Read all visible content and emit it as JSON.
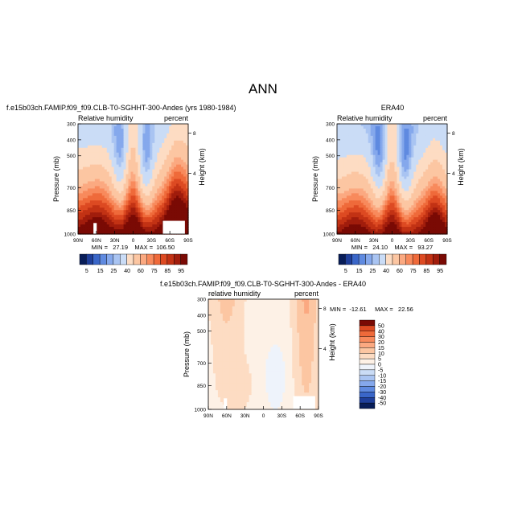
{
  "page_title": "ANN",
  "colors": {
    "blues": [
      "#081d58",
      "#1f3f9a",
      "#3a66c8",
      "#5f8ae0",
      "#85a8ec",
      "#a9c4f2",
      "#cadcf6"
    ],
    "neutral": [
      "#eef3fb",
      "#fdf1e6"
    ],
    "reds": [
      "#fddcc3",
      "#fcc6a2",
      "#fba981",
      "#f88a5c",
      "#ef6a3a",
      "#dd4a22",
      "#c23214",
      "#a11d0c",
      "#7a0a04"
    ]
  },
  "chart_data": [
    {
      "type": "heatmap",
      "title": "f.e15b03ch.FAMIP.f09_f09.CLB-T0-SGHHT-300-Andes (yrs 1980-1984)",
      "left_label": "Relative humidity",
      "right_label": "percent",
      "ylabel": "Pressure (mb)",
      "y2label": "Height (km)",
      "x_ticks": [
        "90N",
        "60N",
        "30N",
        "0",
        "30S",
        "60S",
        "90S"
      ],
      "y_ticks": [
        "300",
        "400",
        "500",
        "700",
        "850",
        "1000"
      ],
      "y2_ticks": [
        "8",
        "4"
      ],
      "min_max_text": "MIN =   27.19    MAX =  106.50",
      "colorbar_labels": [
        "5",
        "15",
        "25",
        "40",
        "60",
        "75",
        "85",
        "95"
      ],
      "approx_field": {
        "lat": [
          90,
          -90
        ],
        "pressure": [
          300,
          1000
        ],
        "range": [
          27.19,
          106.5
        ]
      }
    },
    {
      "type": "heatmap",
      "title": "ERA40",
      "left_label": "Relative humidity",
      "right_label": "percent",
      "ylabel": "Pressure (mb)",
      "y2label": "Height (km)",
      "x_ticks": [
        "90N",
        "60N",
        "30N",
        "0",
        "30S",
        "60S",
        "90S"
      ],
      "y_ticks": [
        "300",
        "400",
        "500",
        "700",
        "850",
        "1000"
      ],
      "y2_ticks": [
        "8",
        "4"
      ],
      "min_max_text": "MIN =   24.10    MAX =   93.27",
      "colorbar_labels": [
        "5",
        "15",
        "25",
        "40",
        "60",
        "75",
        "85",
        "95"
      ],
      "approx_field": {
        "lat": [
          90,
          -90
        ],
        "pressure": [
          300,
          1000
        ],
        "range": [
          24.1,
          93.27
        ]
      }
    },
    {
      "type": "heatmap",
      "title": "f.e15b03ch.FAMIP.f09_f09.CLB-T0-SGHHT-300-Andes - ERA40",
      "left_label": "relative humidity",
      "right_label": "percent",
      "ylabel": "Pressure (mb)",
      "y2label": "Height (km)",
      "x_ticks": [
        "90N",
        "60N",
        "30N",
        "0",
        "30S",
        "60S",
        "90S"
      ],
      "y_ticks": [
        "300",
        "400",
        "500",
        "700",
        "850",
        "1000"
      ],
      "y2_ticks": [
        "8",
        "4"
      ],
      "min_max_text": "MIN =  -12.61     MAX =   22.56",
      "colorbar_labels": [
        "50",
        "40",
        "30",
        "20",
        "15",
        "10",
        "5",
        "0",
        "-5",
        "-10",
        "-15",
        "-20",
        "-30",
        "-40",
        "-50"
      ],
      "approx_field": {
        "lat": [
          90,
          -90
        ],
        "pressure": [
          300,
          1000
        ],
        "range": [
          -12.61,
          22.56
        ]
      }
    }
  ]
}
